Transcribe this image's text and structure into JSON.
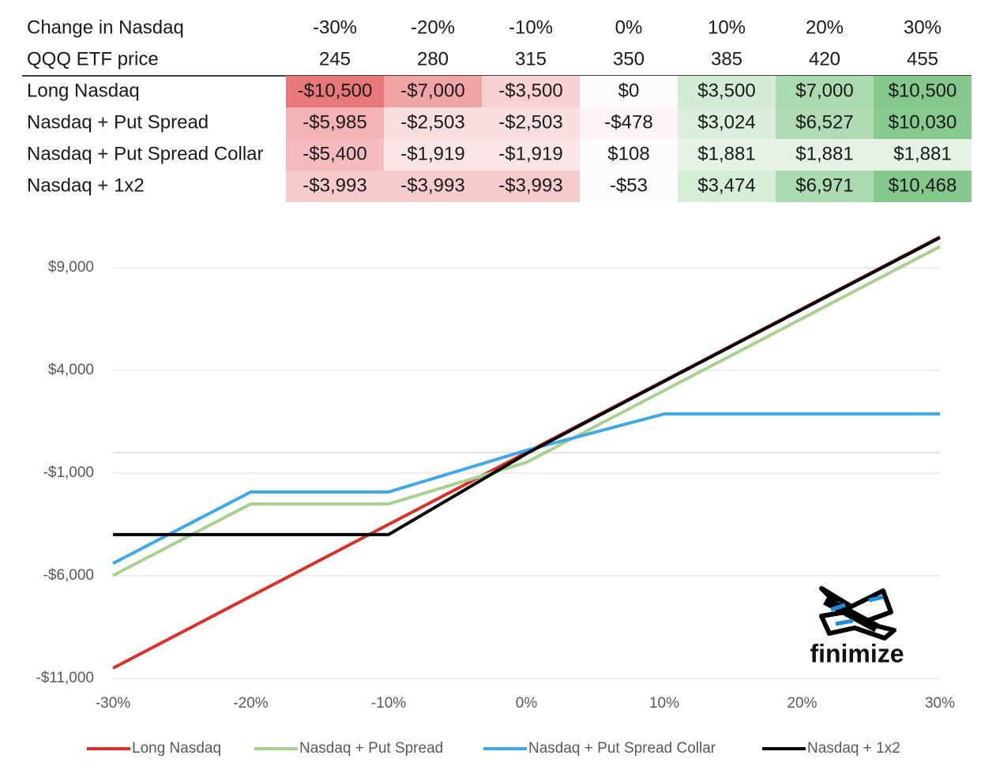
{
  "table": {
    "header_rows": [
      [
        "Change in Nasdaq",
        "-30%",
        "-20%",
        "-10%",
        "0%",
        "10%",
        "20%",
        "30%"
      ],
      [
        "QQQ ETF price",
        "245",
        "280",
        "315",
        "350",
        "385",
        "420",
        "455"
      ]
    ],
    "rows": [
      {
        "cells": [
          "Long Nasdaq",
          "-$10,500",
          "-$7,000",
          "-$3,500",
          "$0",
          "$3,500",
          "$7,000",
          "$10,500"
        ],
        "fills": [
          "#e9787a",
          "#f0a4a5",
          "#f7d0d1",
          "#fcfcff",
          "#d4ecd6",
          "#acdab1",
          "#84c88b"
        ]
      },
      {
        "cells": [
          "Nasdaq + Put Spread",
          "-$5,985",
          "-$2,503",
          "-$2,503",
          "-$478",
          "$3,024",
          "$6,527",
          "$10,030"
        ],
        "fills": [
          "#f2b3b4",
          "#f9dedf",
          "#f9dedf",
          "#fbf3f4",
          "#d9eedb",
          "#b0dcb5",
          "#87ca8e"
        ]
      },
      {
        "cells": [
          "Nasdaq + Put Spread Collar",
          "-$5,400",
          "-$1,919",
          "-$1,919",
          "$108",
          "$1,881",
          "$1,881",
          "$1,881"
        ],
        "fills": [
          "#f4bcbd",
          "#fae4e5",
          "#fae4e5",
          "#fcfcff",
          "#e5f3e6",
          "#e5f3e6",
          "#e5f3e6"
        ]
      },
      {
        "cells": [
          "Nasdaq + 1x2",
          "-$3,993",
          "-$3,993",
          "-$3,993",
          "-$53",
          "$3,474",
          "$6,971",
          "$10,468"
        ],
        "fills": [
          "#f7cbcc",
          "#f7cbcc",
          "#f7cbcc",
          "#fcfcfc",
          "#d6edd8",
          "#acdab1",
          "#84c88b"
        ]
      }
    ]
  },
  "chart_data": {
    "type": "line",
    "x": [
      -30,
      -20,
      -10,
      0,
      10,
      20,
      30
    ],
    "xlim": [
      -30,
      30
    ],
    "xticks": [
      {
        "value": -30,
        "label": "-30%"
      },
      {
        "value": -20,
        "label": "-20%"
      },
      {
        "value": -10,
        "label": "-10%"
      },
      {
        "value": 0,
        "label": "0%"
      },
      {
        "value": 10,
        "label": "10%"
      },
      {
        "value": 20,
        "label": "20%"
      },
      {
        "value": 30,
        "label": "30%"
      }
    ],
    "ylim": [
      -11000,
      11000
    ],
    "yticks": [
      {
        "value": -11000,
        "label": "-$11,000"
      },
      {
        "value": -6000,
        "label": "-$6,000"
      },
      {
        "value": -1000,
        "label": "-$1,000"
      },
      {
        "value": 4000,
        "label": "$4,000"
      },
      {
        "value": 9000,
        "label": "$9,000"
      }
    ],
    "grid": true,
    "legend": "bottom",
    "series": [
      {
        "name": "Long Nasdaq",
        "color": "#d9302a",
        "values": [
          -10500,
          -7000,
          -3500,
          0,
          3500,
          7000,
          10500
        ]
      },
      {
        "name": "Nasdaq + Put Spread",
        "color": "#a9d08e",
        "values": [
          -5985,
          -2503,
          -2503,
          -478,
          3024,
          6527,
          10030
        ]
      },
      {
        "name": "Nasdaq + Put Spread Collar",
        "color": "#41a8e8",
        "values": [
          -5400,
          -1919,
          -1919,
          108,
          1881,
          1881,
          1881
        ]
      },
      {
        "name": "Nasdaq + 1x2",
        "color": "#000000",
        "values": [
          -3993,
          -3993,
          -3993,
          -53,
          3474,
          6971,
          10468
        ]
      }
    ],
    "logo": "finimize"
  }
}
